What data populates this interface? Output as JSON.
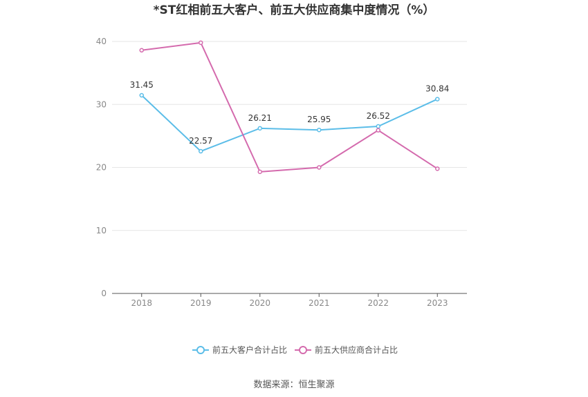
{
  "source_label": "数据来源：恒生聚源",
  "chart_data": {
    "type": "line",
    "title": "*ST红相前五大客户、前五大供应商集中度情况（%）",
    "categories": [
      "2018",
      "2019",
      "2020",
      "2021",
      "2022",
      "2023"
    ],
    "ylim": [
      0,
      40
    ],
    "yticks": [
      0,
      10,
      20,
      30,
      40
    ],
    "grid": true,
    "legend_position": "bottom",
    "series": [
      {
        "name": "前五大客户合计占比",
        "color": "#5bbde8",
        "values": [
          31.45,
          22.57,
          26.21,
          25.95,
          26.52,
          30.84
        ],
        "labels": [
          "31.45",
          "22.57",
          "26.21",
          "25.95",
          "26.52",
          "30.84"
        ]
      },
      {
        "name": "前五大供应商合计占比",
        "color": "#d46aad",
        "values": [
          38.6,
          39.8,
          19.3,
          20.0,
          25.9,
          19.8
        ]
      }
    ]
  }
}
